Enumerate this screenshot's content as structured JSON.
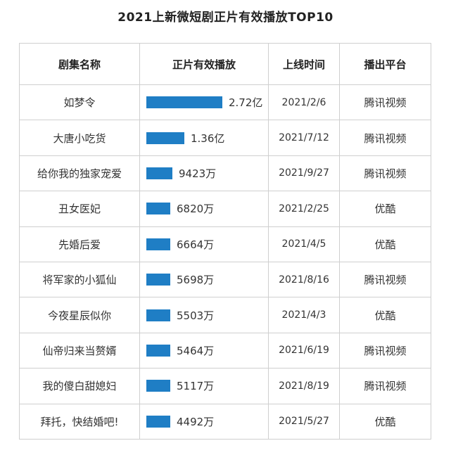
{
  "title": "2021上新微短剧正片有效播放TOP10",
  "headers": [
    "剧集名称",
    "正片有效播放",
    "上线时间",
    "播出平台"
  ],
  "chart_data": {
    "type": "bar",
    "title": "2021上新微短剧正片有效播放TOP10",
    "unit": "万",
    "rows": [
      {
        "name": "如梦令",
        "label": "2.72亿",
        "value": 27200,
        "date": "2021/2/6",
        "platform": "腾讯视频"
      },
      {
        "name": "大唐小吃货",
        "label": "1.36亿",
        "value": 13600,
        "date": "2021/7/12",
        "platform": "腾讯视频"
      },
      {
        "name": "给你我的独家宠爱",
        "label": "9423万",
        "value": 9423,
        "date": "2021/9/27",
        "platform": "腾讯视频"
      },
      {
        "name": "丑女医妃",
        "label": "6820万",
        "value": 6820,
        "date": "2021/2/25",
        "platform": "优酷"
      },
      {
        "name": "先婚后爱",
        "label": "6664万",
        "value": 6664,
        "date": "2021/4/5",
        "platform": "优酷"
      },
      {
        "name": "将军家的小狐仙",
        "label": "5698万",
        "value": 5698,
        "date": "2021/8/16",
        "platform": "腾讯视频"
      },
      {
        "name": "今夜星辰似你",
        "label": "5503万",
        "value": 5503,
        "date": "2021/4/3",
        "platform": "优酷"
      },
      {
        "name": "仙帝归来当赘婿",
        "label": "5464万",
        "value": 5464,
        "date": "2021/6/19",
        "platform": "腾讯视频"
      },
      {
        "name": "我的傻白甜媳妇",
        "label": "5117万",
        "value": 5117,
        "date": "2021/8/19",
        "platform": "腾讯视频"
      },
      {
        "name": "拜托，快结婚吧!",
        "label": "4492万",
        "value": 4492,
        "date": "2021/5/27",
        "platform": "优酷"
      }
    ],
    "bar_color": "#1f7ec5"
  }
}
